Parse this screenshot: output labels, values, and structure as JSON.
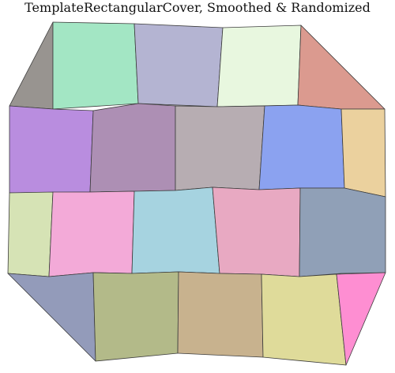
{
  "title": "TemplateRectangularCover, Smoothed & Randomized",
  "tiles": [
    {
      "id": "r1c0",
      "color": "#989490"
    },
    {
      "id": "r1c1",
      "color": "#a3e6c4"
    },
    {
      "id": "r1c2",
      "color": "#b4b4d2"
    },
    {
      "id": "r1c3",
      "color": "#e8f7df"
    },
    {
      "id": "r1c4",
      "color": "#db9a8f"
    },
    {
      "id": "r2c0",
      "color": "#b98ddf"
    },
    {
      "id": "r2c1",
      "color": "#ad8fb4"
    },
    {
      "id": "r2c2",
      "color": "#b7adb2"
    },
    {
      "id": "r2c3",
      "color": "#8ba2f0"
    },
    {
      "id": "r2c4",
      "color": "#ebd19e"
    },
    {
      "id": "r3c0",
      "color": "#d6e3b5"
    },
    {
      "id": "r3c1",
      "color": "#f3aad8"
    },
    {
      "id": "r3c2",
      "color": "#a6d3e0"
    },
    {
      "id": "r3c3",
      "color": "#e8a9c2"
    },
    {
      "id": "r3c4",
      "color": "#90a0b7"
    },
    {
      "id": "r4c0",
      "color": "#939bba"
    },
    {
      "id": "r4c1",
      "color": "#b3ba89"
    },
    {
      "id": "r4c2",
      "color": "#c8b28e"
    },
    {
      "id": "r4c3",
      "color": "#dfdb9a"
    },
    {
      "id": "r4c4",
      "color": "#fe8ed2"
    }
  ]
}
